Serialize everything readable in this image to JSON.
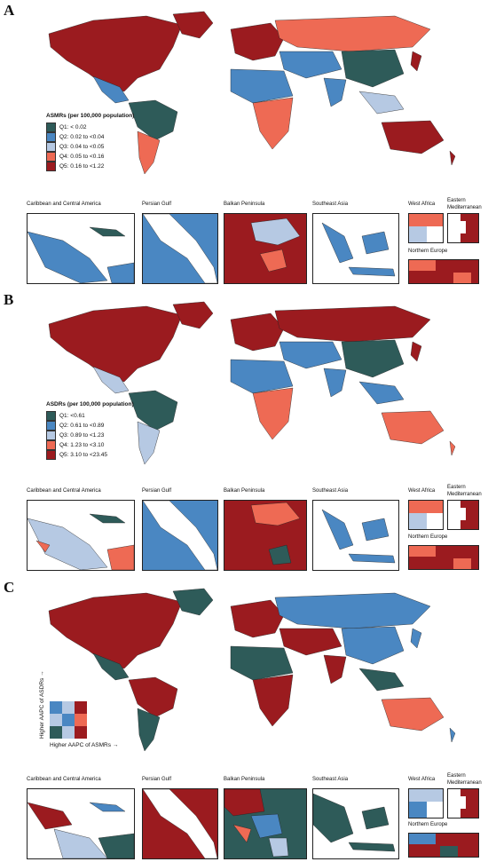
{
  "colors": {
    "q1": "#2e5b59",
    "q2": "#4a87c2",
    "q3": "#b6c9e3",
    "q4": "#ee6a54",
    "q5": "#9b1b1f"
  },
  "panels": [
    {
      "letter": "A",
      "legend": {
        "title": "ASMRs (per 100,000 population)",
        "items": [
          "Q1: < 0.02",
          "Q2: 0.02 to <0.04",
          "Q3: 0.04 to <0.05",
          "Q4: 0.05 to <0.16",
          "Q5: 0.16 to <1.22"
        ]
      }
    },
    {
      "letter": "B",
      "legend": {
        "title": "ASDRs (per 100,000 population)",
        "items": [
          "Q1: <0.61",
          "Q2: 0.61 to <0.89",
          "Q3: 0.89 to <1.23",
          "Q4: 1.23 to <3.10",
          "Q5: 3.10 to <23.45"
        ]
      }
    },
    {
      "letter": "C",
      "bivariate": {
        "y_label": "Higher AAPC of ASDRs",
        "x_label": "Higher AAPC of ASMRs",
        "y_arrow": "→",
        "x_arrow": "→"
      }
    }
  ],
  "insets": {
    "caribbean": "Caribbean and Central America",
    "persian": "Persian Gulf",
    "balkan": "Balkan Peninsula",
    "sea": "Southeast Asia",
    "west_africa": "West Africa",
    "east_med": "Eastern\nMediterranean",
    "north_europe": "Northern Europe"
  }
}
